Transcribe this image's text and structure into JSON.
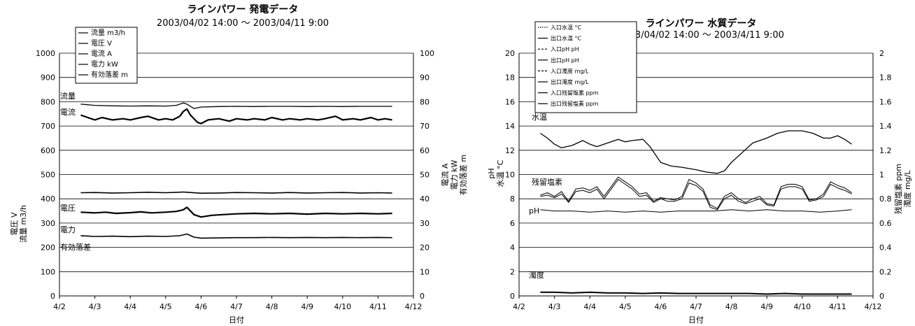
{
  "chart_data": [
    {
      "type": "line",
      "title": "ラインパワー 発電データ",
      "subtitle": "2003/04/02 14:00 ～ 2003/04/11 9:00",
      "xlabel": "日付",
      "ylabel_left": [
        "電圧 V",
        "流量 m3/h"
      ],
      "ylabel_right": [
        "電流 A",
        "電力 kW",
        "有効落差 m"
      ],
      "x_ticks": [
        "4/2",
        "4/3",
        "4/4",
        "4/5",
        "4/6",
        "4/7",
        "4/8",
        "4/9",
        "4/10",
        "4/11",
        "4/12"
      ],
      "x_range": [
        2,
        12
      ],
      "ylim_left": [
        0,
        1000
      ],
      "ylim_right": [
        0,
        100
      ],
      "y_ticks_left": [
        "0",
        "100",
        "200",
        "300",
        "400",
        "500",
        "600",
        "700",
        "800",
        "900",
        "1000"
      ],
      "y_ticks_right": [
        "0",
        "10",
        "20",
        "30",
        "40",
        "50",
        "60",
        "70",
        "80",
        "90",
        "100"
      ],
      "grid": true,
      "legend": [
        "流量 m3/h",
        "電圧 V",
        "電流 A",
        "電力 kW",
        "有効落差 m"
      ],
      "legend_placement": "top-left",
      "annotations": [
        "流量",
        "電流",
        "電圧",
        "電力",
        "有効落差"
      ],
      "series": [
        {
          "name": "流量 m3/h",
          "axis": "left",
          "x": [
            2.6,
            3.0,
            3.5,
            4.0,
            4.5,
            5.0,
            5.3,
            5.5,
            5.6,
            5.8,
            6.0,
            6.5,
            7.0,
            7.5,
            8.0,
            8.5,
            9.0,
            9.5,
            10.0,
            10.5,
            11.0,
            11.4
          ],
          "y": [
            790,
            785,
            783,
            782,
            783,
            782,
            785,
            795,
            790,
            772,
            778,
            780,
            781,
            780,
            781,
            781,
            780,
            781,
            780,
            781,
            781,
            781
          ]
        },
        {
          "name": "電流 A",
          "axis": "right",
          "x": [
            2.6,
            2.8,
            3.0,
            3.2,
            3.5,
            3.8,
            4.0,
            4.3,
            4.5,
            4.8,
            5.0,
            5.2,
            5.4,
            5.5,
            5.6,
            5.7,
            5.9,
            6.0,
            6.2,
            6.5,
            6.8,
            7.0,
            7.3,
            7.5,
            7.8,
            8.0,
            8.3,
            8.5,
            8.8,
            9.0,
            9.3,
            9.5,
            9.8,
            10.0,
            10.3,
            10.5,
            10.8,
            11.0,
            11.2,
            11.4
          ],
          "y": [
            74.5,
            73.5,
            72.5,
            73.5,
            72.5,
            73,
            72.5,
            73.5,
            74,
            72.5,
            73,
            72.5,
            74,
            76,
            77,
            74.5,
            71.5,
            71,
            72.5,
            73,
            72,
            73,
            72.5,
            73,
            72.5,
            73.5,
            72.5,
            73,
            72.5,
            73,
            72.5,
            73,
            74,
            72.5,
            73,
            72.5,
            73.5,
            72.5,
            73,
            72.5
          ]
        },
        {
          "name": "電圧 V",
          "axis": "left",
          "x": [
            2.6,
            3.0,
            3.5,
            4.0,
            4.5,
            5.0,
            5.5,
            5.6,
            6.0,
            6.5,
            7.0,
            7.5,
            8.0,
            8.5,
            9.0,
            9.5,
            10.0,
            10.5,
            11.0,
            11.4
          ],
          "y": [
            425,
            426,
            424,
            425,
            427,
            425,
            428,
            427,
            423,
            424,
            426,
            425,
            424,
            426,
            424,
            425,
            426,
            424,
            425,
            424
          ]
        },
        {
          "name": "電力 kW",
          "axis": "right",
          "x": [
            2.6,
            3.0,
            3.3,
            3.6,
            4.0,
            4.3,
            4.6,
            5.0,
            5.3,
            5.5,
            5.6,
            5.8,
            6.0,
            6.3,
            6.6,
            7.0,
            7.5,
            8.0,
            8.5,
            9.0,
            9.5,
            10.0,
            10.5,
            11.0,
            11.4
          ],
          "y": [
            34.5,
            34.2,
            34.5,
            34,
            34.3,
            34.6,
            34.2,
            34.5,
            34.8,
            35.5,
            36.5,
            33.5,
            32.5,
            33.2,
            33.5,
            33.8,
            34,
            33.8,
            34,
            33.7,
            34,
            33.8,
            34,
            33.8,
            34
          ]
        },
        {
          "name": "有効落差 m",
          "axis": "right",
          "x": [
            2.6,
            3.0,
            3.5,
            4.0,
            4.5,
            5.0,
            5.4,
            5.6,
            5.8,
            6.0,
            6.5,
            7.0,
            7.5,
            8.0,
            8.5,
            9.0,
            9.5,
            10.0,
            10.5,
            11.0,
            11.4
          ],
          "y": [
            24.8,
            24.5,
            24.6,
            24.4,
            24.6,
            24.5,
            24.8,
            25.5,
            24.2,
            23.8,
            23.9,
            24.0,
            24.0,
            24.1,
            24.0,
            24.1,
            24.0,
            24.1,
            24.0,
            24.1,
            24.0
          ]
        }
      ]
    },
    {
      "type": "line",
      "title": "ラインパワー 水質データ",
      "subtitle": "2003/04/02 14:00 ～ 2003/4/11 9:00",
      "xlabel": "日付",
      "ylabel_left": [
        "pH",
        "水温 °C"
      ],
      "ylabel_right": [
        "残留塩素 ppm",
        "濁度 mg/L"
      ],
      "x_ticks": [
        "4/2",
        "4/3",
        "4/4",
        "4/5",
        "4/6",
        "4/7",
        "4/8",
        "4/9",
        "4/10",
        "4/11",
        "4/12"
      ],
      "x_range": [
        2,
        12
      ],
      "ylim_left": [
        0,
        20
      ],
      "ylim_right": [
        0,
        2
      ],
      "y_ticks_left": [
        "0",
        "2",
        "4",
        "6",
        "8",
        "10",
        "12",
        "14",
        "16",
        "18",
        "20"
      ],
      "y_ticks_right": [
        "0",
        "0.2",
        "0.4",
        "0.6",
        "0.8",
        "1",
        "1.2",
        "1.4",
        "1.6",
        "1.8",
        "2"
      ],
      "grid": true,
      "legend": [
        "入口水温 °C",
        "出口水温 °C",
        "入口pH pH",
        "出口pH pH",
        "入口濁度 mg/L",
        "出口濁度 mg/L",
        "入口残留塩素 ppm",
        "出口残留塩素 ppm"
      ],
      "legend_placement": "top-left",
      "annotations": [
        "水温",
        "残留塩素",
        "pH",
        "濁度"
      ],
      "series": [
        {
          "name": "入口水温 °C",
          "axis": "left",
          "x": [
            2.6,
            2.8,
            3.0,
            3.2,
            3.5,
            3.8,
            4.0,
            4.2,
            4.5,
            4.8,
            5.0,
            5.2,
            5.5,
            5.7,
            6.0,
            6.3,
            6.6,
            7.0,
            7.3,
            7.6,
            7.8,
            8.0,
            8.3,
            8.6,
            9.0,
            9.3,
            9.6,
            10.0,
            10.3,
            10.6,
            10.8,
            11.0,
            11.2,
            11.4
          ],
          "y": [
            13.4,
            13.0,
            12.5,
            12.2,
            12.4,
            12.8,
            12.5,
            12.3,
            12.6,
            12.9,
            12.7,
            12.8,
            12.9,
            12.3,
            11.0,
            10.7,
            10.6,
            10.4,
            10.2,
            10.1,
            10.3,
            11.0,
            11.8,
            12.6,
            13.0,
            13.4,
            13.6,
            13.6,
            13.4,
            13.0,
            13.0,
            13.2,
            12.9,
            12.5
          ]
        },
        {
          "name": "入口残留塩素 ppm",
          "axis": "right",
          "x": [
            2.6,
            2.8,
            3.0,
            3.2,
            3.4,
            3.6,
            3.8,
            4.0,
            4.2,
            4.4,
            4.6,
            4.8,
            5.0,
            5.2,
            5.4,
            5.6,
            5.8,
            6.0,
            6.2,
            6.4,
            6.6,
            6.8,
            7.0,
            7.2,
            7.4,
            7.6,
            7.8,
            8.0,
            8.2,
            8.4,
            8.6,
            8.8,
            9.0,
            9.2,
            9.4,
            9.6,
            9.8,
            10.0,
            10.2,
            10.4,
            10.6,
            10.8,
            11.0,
            11.2,
            11.4
          ],
          "y": [
            0.83,
            0.85,
            0.82,
            0.86,
            0.78,
            0.88,
            0.89,
            0.87,
            0.9,
            0.82,
            0.9,
            0.98,
            0.94,
            0.9,
            0.84,
            0.85,
            0.78,
            0.81,
            0.8,
            0.79,
            0.82,
            0.96,
            0.93,
            0.88,
            0.75,
            0.72,
            0.82,
            0.85,
            0.8,
            0.77,
            0.8,
            0.82,
            0.76,
            0.75,
            0.9,
            0.92,
            0.92,
            0.9,
            0.79,
            0.8,
            0.84,
            0.94,
            0.91,
            0.89,
            0.85
          ]
        },
        {
          "name": "出口残留塩素 ppm",
          "axis": "right",
          "x": [
            2.6,
            2.8,
            3.0,
            3.2,
            3.4,
            3.6,
            3.8,
            4.0,
            4.2,
            4.4,
            4.6,
            4.8,
            5.0,
            5.2,
            5.4,
            5.6,
            5.8,
            6.0,
            6.2,
            6.4,
            6.6,
            6.8,
            7.0,
            7.2,
            7.4,
            7.6,
            7.8,
            8.0,
            8.2,
            8.4,
            8.6,
            8.8,
            9.0,
            9.2,
            9.4,
            9.6,
            9.8,
            10.0,
            10.2,
            10.4,
            10.6,
            10.8,
            11.0,
            11.2,
            11.4
          ],
          "y": [
            0.82,
            0.83,
            0.81,
            0.84,
            0.77,
            0.86,
            0.87,
            0.85,
            0.88,
            0.8,
            0.88,
            0.96,
            0.92,
            0.88,
            0.82,
            0.83,
            0.77,
            0.8,
            0.78,
            0.78,
            0.8,
            0.93,
            0.91,
            0.86,
            0.73,
            0.71,
            0.8,
            0.83,
            0.78,
            0.76,
            0.78,
            0.8,
            0.75,
            0.74,
            0.88,
            0.9,
            0.9,
            0.88,
            0.78,
            0.79,
            0.82,
            0.92,
            0.89,
            0.87,
            0.84
          ]
        },
        {
          "name": "入口pH pH",
          "axis": "left",
          "x": [
            2.6,
            3.0,
            3.5,
            4.0,
            4.5,
            5.0,
            5.5,
            6.0,
            6.5,
            7.0,
            7.5,
            8.0,
            8.5,
            9.0,
            9.5,
            10.0,
            10.5,
            11.0,
            11.4
          ],
          "y": [
            7.1,
            7.0,
            7.0,
            6.9,
            7.0,
            6.9,
            7.0,
            6.9,
            7.0,
            7.0,
            7.0,
            7.1,
            7.0,
            7.1,
            7.0,
            7.0,
            6.9,
            7.0,
            7.1
          ]
        },
        {
          "name": "入口濁度 mg/L",
          "axis": "right",
          "x": [
            2.6,
            3.0,
            3.5,
            4.0,
            4.5,
            5.0,
            5.5,
            6.0,
            6.5,
            7.0,
            7.5,
            8.0,
            8.5,
            9.0,
            9.5,
            10.0,
            10.5,
            11.0,
            11.4
          ],
          "y": [
            0.03,
            0.03,
            0.025,
            0.03,
            0.025,
            0.025,
            0.02,
            0.025,
            0.02,
            0.02,
            0.02,
            0.02,
            0.02,
            0.015,
            0.02,
            0.015,
            0.015,
            0.015,
            0.015
          ]
        }
      ]
    }
  ]
}
